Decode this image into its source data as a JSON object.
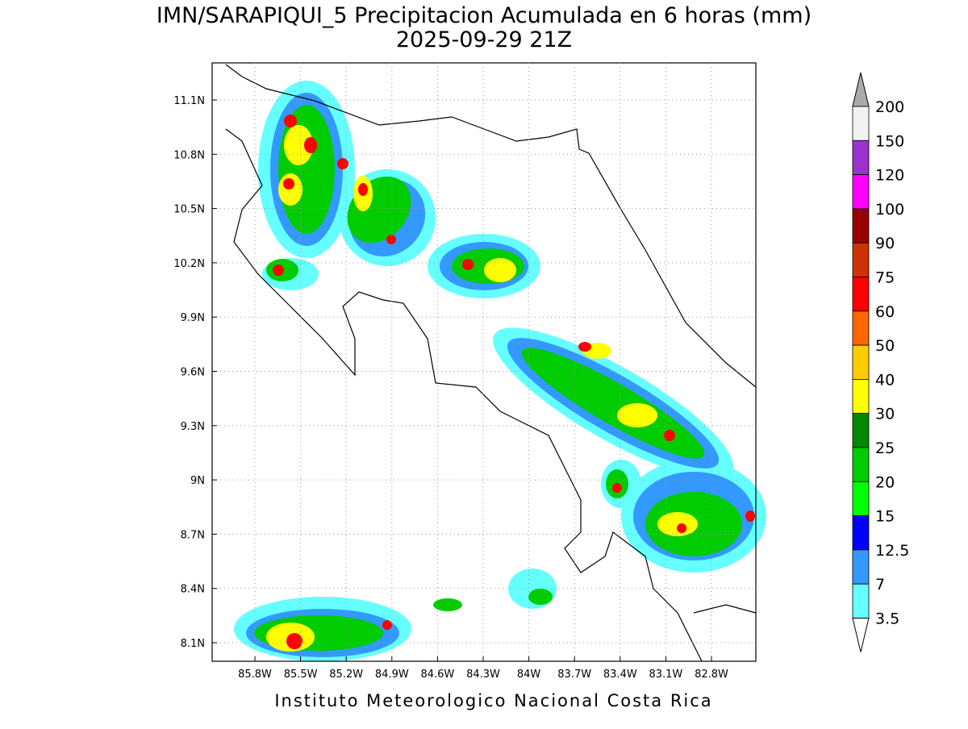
{
  "header": {
    "title": "IMN/SARAPIQUI_5 Precipitacion Acumulada en 6 horas (mm)",
    "subtitle": "2025-09-29 21Z"
  },
  "map": {
    "lon_labels": [
      "85.8W",
      "85.5W",
      "85.2W",
      "84.9W",
      "84.6W",
      "84.3W",
      "84W",
      "83.7W",
      "83.4W",
      "83.1W",
      "82.8W"
    ],
    "lat_labels": [
      "11.1N",
      "10.8N",
      "10.5N",
      "10.2N",
      "9.9N",
      "9.6N",
      "9.3N",
      "9N",
      "8.7N",
      "8.4N",
      "8.1N"
    ]
  },
  "colorbar": {
    "labels": [
      "200",
      "150",
      "120",
      "100",
      "90",
      "75",
      "60",
      "50",
      "40",
      "30",
      "25",
      "20",
      "15",
      "12.5",
      "7",
      "3.5"
    ],
    "colors": [
      "#f2f2f2",
      "#9933cc",
      "#ff00ff",
      "#990000",
      "#cc3300",
      "#ff0000",
      "#ff6600",
      "#ffcc00",
      "#ffff00",
      "#008800",
      "#00cc00",
      "#00ff00",
      "#0000ff",
      "#3399ff",
      "#66ffff"
    ]
  },
  "footer": "Instituto Meteorologico Nacional Costa Rica"
}
